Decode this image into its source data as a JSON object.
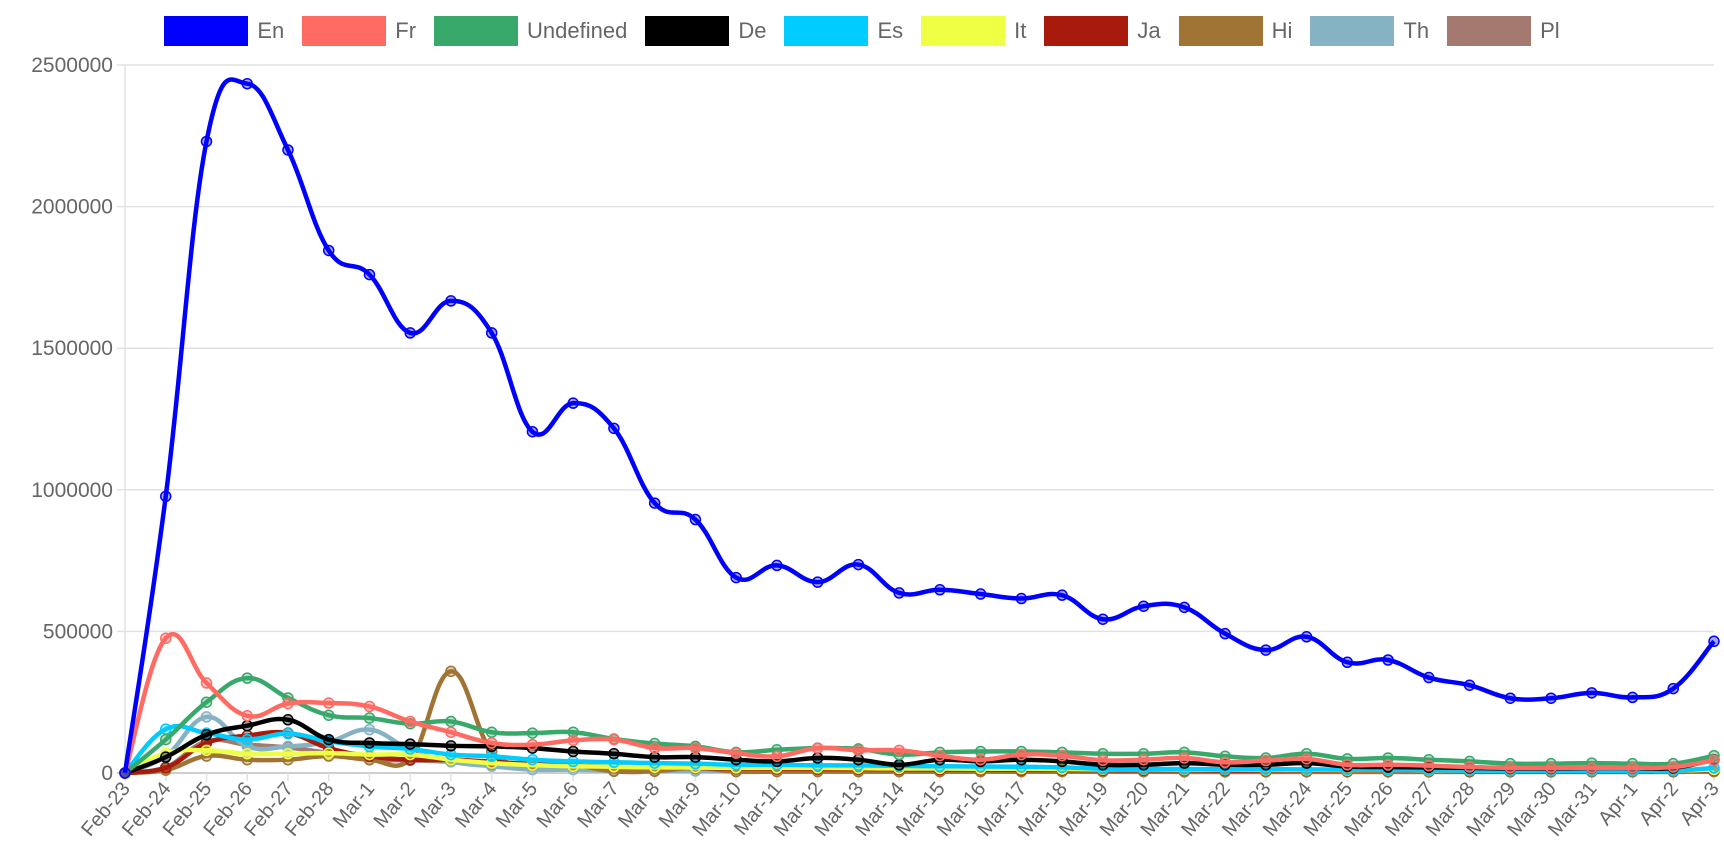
{
  "chart_data": {
    "type": "line",
    "title": "",
    "xlabel": "",
    "ylabel": "",
    "ylim": [
      0,
      2500000
    ],
    "yticks": [
      "0",
      "500000",
      "1000000",
      "1500000",
      "2000000",
      "2500000"
    ],
    "grid": true,
    "legend_position": "top",
    "categories": [
      "Feb-23",
      "Feb-24",
      "Feb-25",
      "Feb-26",
      "Feb-27",
      "Feb-28",
      "Mar-1",
      "Mar-2",
      "Mar-3",
      "Mar-4",
      "Mar-5",
      "Mar-6",
      "Mar-7",
      "Mar-8",
      "Mar-9",
      "Mar-10",
      "Mar-11",
      "Mar-12",
      "Mar-13",
      "Mar-14",
      "Mar-15",
      "Mar-16",
      "Mar-17",
      "Mar-18",
      "Mar-19",
      "Mar-20",
      "Mar-21",
      "Mar-22",
      "Mar-23",
      "Mar-24",
      "Mar-25",
      "Mar-26",
      "Mar-27",
      "Mar-28",
      "Mar-29",
      "Mar-30",
      "Mar-31",
      "Apr-1",
      "Apr-2",
      "Apr-3"
    ],
    "series": [
      {
        "name": "En",
        "color": "#0000ff",
        "values": [
          0,
          977000,
          2230000,
          2434000,
          2200000,
          1845000,
          1760000,
          1554000,
          1667000,
          1554000,
          1205000,
          1306000,
          1217000,
          953000,
          895000,
          690000,
          733000,
          674000,
          736000,
          636000,
          647000,
          632000,
          616000,
          628000,
          543000,
          589000,
          585000,
          492000,
          434000,
          481000,
          391000,
          399000,
          337000,
          310000,
          264000,
          264000,
          283000,
          267000,
          298000,
          465000
        ]
      },
      {
        "name": "Fr",
        "color": "#ff6b63",
        "values": [
          0,
          476000,
          318000,
          202000,
          245000,
          247000,
          235000,
          182000,
          144000,
          106000,
          100000,
          115000,
          118000,
          88000,
          88000,
          70000,
          59000,
          88000,
          80000,
          80000,
          61000,
          47000,
          65000,
          61000,
          45000,
          47000,
          53000,
          38000,
          44000,
          50000,
          29000,
          29000,
          26000,
          21000,
          18000,
          18000,
          18000,
          18000,
          21000,
          45000
        ]
      },
      {
        "name": "Undefined",
        "color": "#38a86b",
        "values": [
          0,
          118000,
          250000,
          335000,
          265000,
          204000,
          194000,
          174000,
          182000,
          144000,
          141000,
          144000,
          120000,
          104000,
          94000,
          73000,
          82000,
          88000,
          85000,
          65000,
          73000,
          76000,
          76000,
          73000,
          68000,
          68000,
          73000,
          59000,
          53000,
          68000,
          50000,
          53000,
          47000,
          41000,
          33000,
          33000,
          35000,
          33000,
          33000,
          61000
        ]
      },
      {
        "name": "De",
        "color": "#000000",
        "values": [
          0,
          56000,
          135000,
          167000,
          188000,
          118000,
          106000,
          102000,
          96000,
          94000,
          88000,
          76000,
          68000,
          56000,
          56000,
          47000,
          41000,
          53000,
          47000,
          29000,
          47000,
          41000,
          47000,
          41000,
          29000,
          29000,
          35000,
          29000,
          29000,
          35000,
          23000,
          21000,
          20000,
          18000,
          16000,
          16000,
          17000,
          17000,
          18000,
          47000
        ]
      },
      {
        "name": "Es",
        "color": "#00ccff",
        "values": [
          0,
          155000,
          141000,
          118000,
          139000,
          112000,
          94000,
          85000,
          65000,
          59000,
          47000,
          41000,
          38000,
          35000,
          33000,
          29000,
          29000,
          27000,
          27000,
          25000,
          24000,
          23000,
          22000,
          20000,
          15000,
          14000,
          14000,
          13000,
          13000,
          13000,
          12000,
          11000,
          10000,
          9000,
          8000,
          8000,
          8000,
          8000,
          8000,
          18000
        ]
      },
      {
        "name": "It",
        "color": "#eeff44",
        "values": [
          0,
          70000,
          80000,
          68000,
          68000,
          70000,
          65000,
          65000,
          47000,
          35000,
          28000,
          24000,
          22000,
          20000,
          19000,
          18000,
          18000,
          18000,
          17000,
          16000,
          16000,
          15000,
          15000,
          14000,
          13000,
          13000,
          12000,
          12000,
          11000,
          11000,
          10000,
          10000,
          9000,
          9000,
          8000,
          8000,
          8000,
          8000,
          8000,
          12000
        ]
      },
      {
        "name": "Ja",
        "color": "#a81a0c",
        "values": [
          0,
          18000,
          106000,
          132000,
          141000,
          88000,
          59000,
          47000,
          47000,
          40000,
          30000,
          25000,
          22000,
          20000,
          18000,
          16000,
          15000,
          14000,
          14000,
          13000,
          12000,
          12000,
          11000,
          11000,
          10000,
          10000,
          10000,
          9000,
          9000,
          9000,
          8000,
          8000,
          8000,
          7000,
          7000,
          7000,
          7000,
          7000,
          7000,
          10000
        ]
      },
      {
        "name": "Hi",
        "color": "#a07434",
        "values": [
          0,
          10000,
          60000,
          47000,
          47000,
          60000,
          47000,
          47000,
          359000,
          76000,
          35000,
          29000,
          6000,
          6000,
          18000,
          5000,
          5000,
          5000,
          5000,
          5000,
          5000,
          5000,
          5000,
          5000,
          5000,
          5000,
          4000,
          4000,
          4000,
          4000,
          4000,
          4000,
          4000,
          4000,
          4000,
          4000,
          4000,
          4000,
          4000,
          5000
        ]
      },
      {
        "name": "Th",
        "color": "#86b3c4",
        "values": [
          0,
          60000,
          198000,
          94000,
          94000,
          110000,
          153000,
          82000,
          40000,
          24000,
          12000,
          12000,
          8000,
          8000,
          7000,
          6000,
          6000,
          6000,
          5000,
          5000,
          5000,
          5000,
          5000,
          5000,
          4000,
          4000,
          4000,
          4000,
          4000,
          4000,
          4000,
          4000,
          4000,
          4000,
          4000,
          4000,
          4000,
          4000,
          4000,
          5000
        ]
      },
      {
        "name": "Pl",
        "color": "#a47a70",
        "values": [
          0,
          20000,
          112000,
          100000,
          90000,
          70000,
          47000,
          45000,
          40000,
          30000,
          25000,
          22000,
          18000,
          15000,
          14000,
          12000,
          12000,
          11000,
          11000,
          10000,
          10000,
          10000,
          9000,
          9000,
          9000,
          8000,
          8000,
          8000,
          8000,
          8000,
          8000,
          8000,
          8000,
          8000,
          8000,
          8000,
          8000,
          8000,
          8000,
          10000
        ]
      }
    ]
  }
}
